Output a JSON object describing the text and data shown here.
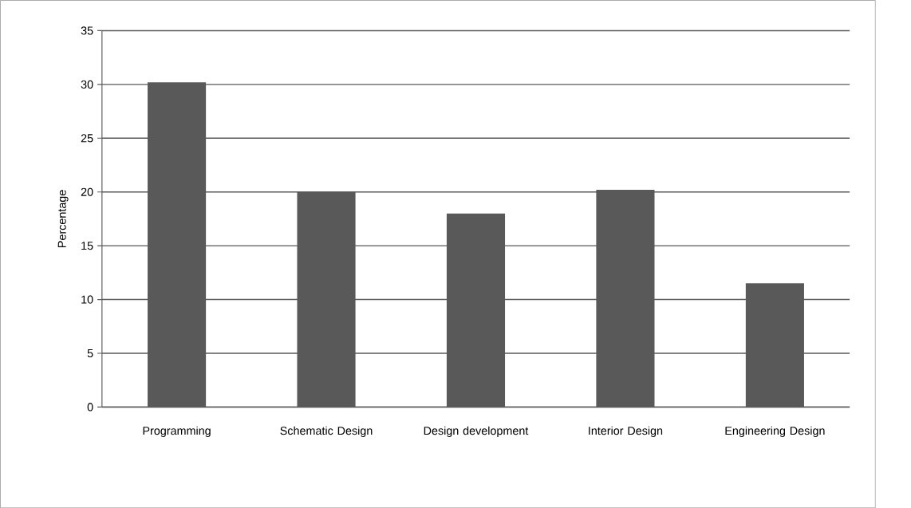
{
  "chart_data": {
    "type": "bar",
    "ylabel": "Percentage",
    "categories": [
      "Programming",
      "Schematic Design",
      "Design development",
      "Interior Design",
      "Engineering Design"
    ],
    "values": [
      30.2,
      20,
      18,
      20.2,
      11.5
    ],
    "color": "#595959",
    "ylim": [
      0,
      35
    ],
    "yticks": [
      0,
      5,
      10,
      15,
      20,
      25,
      30,
      35
    ],
    "grid": "y"
  }
}
